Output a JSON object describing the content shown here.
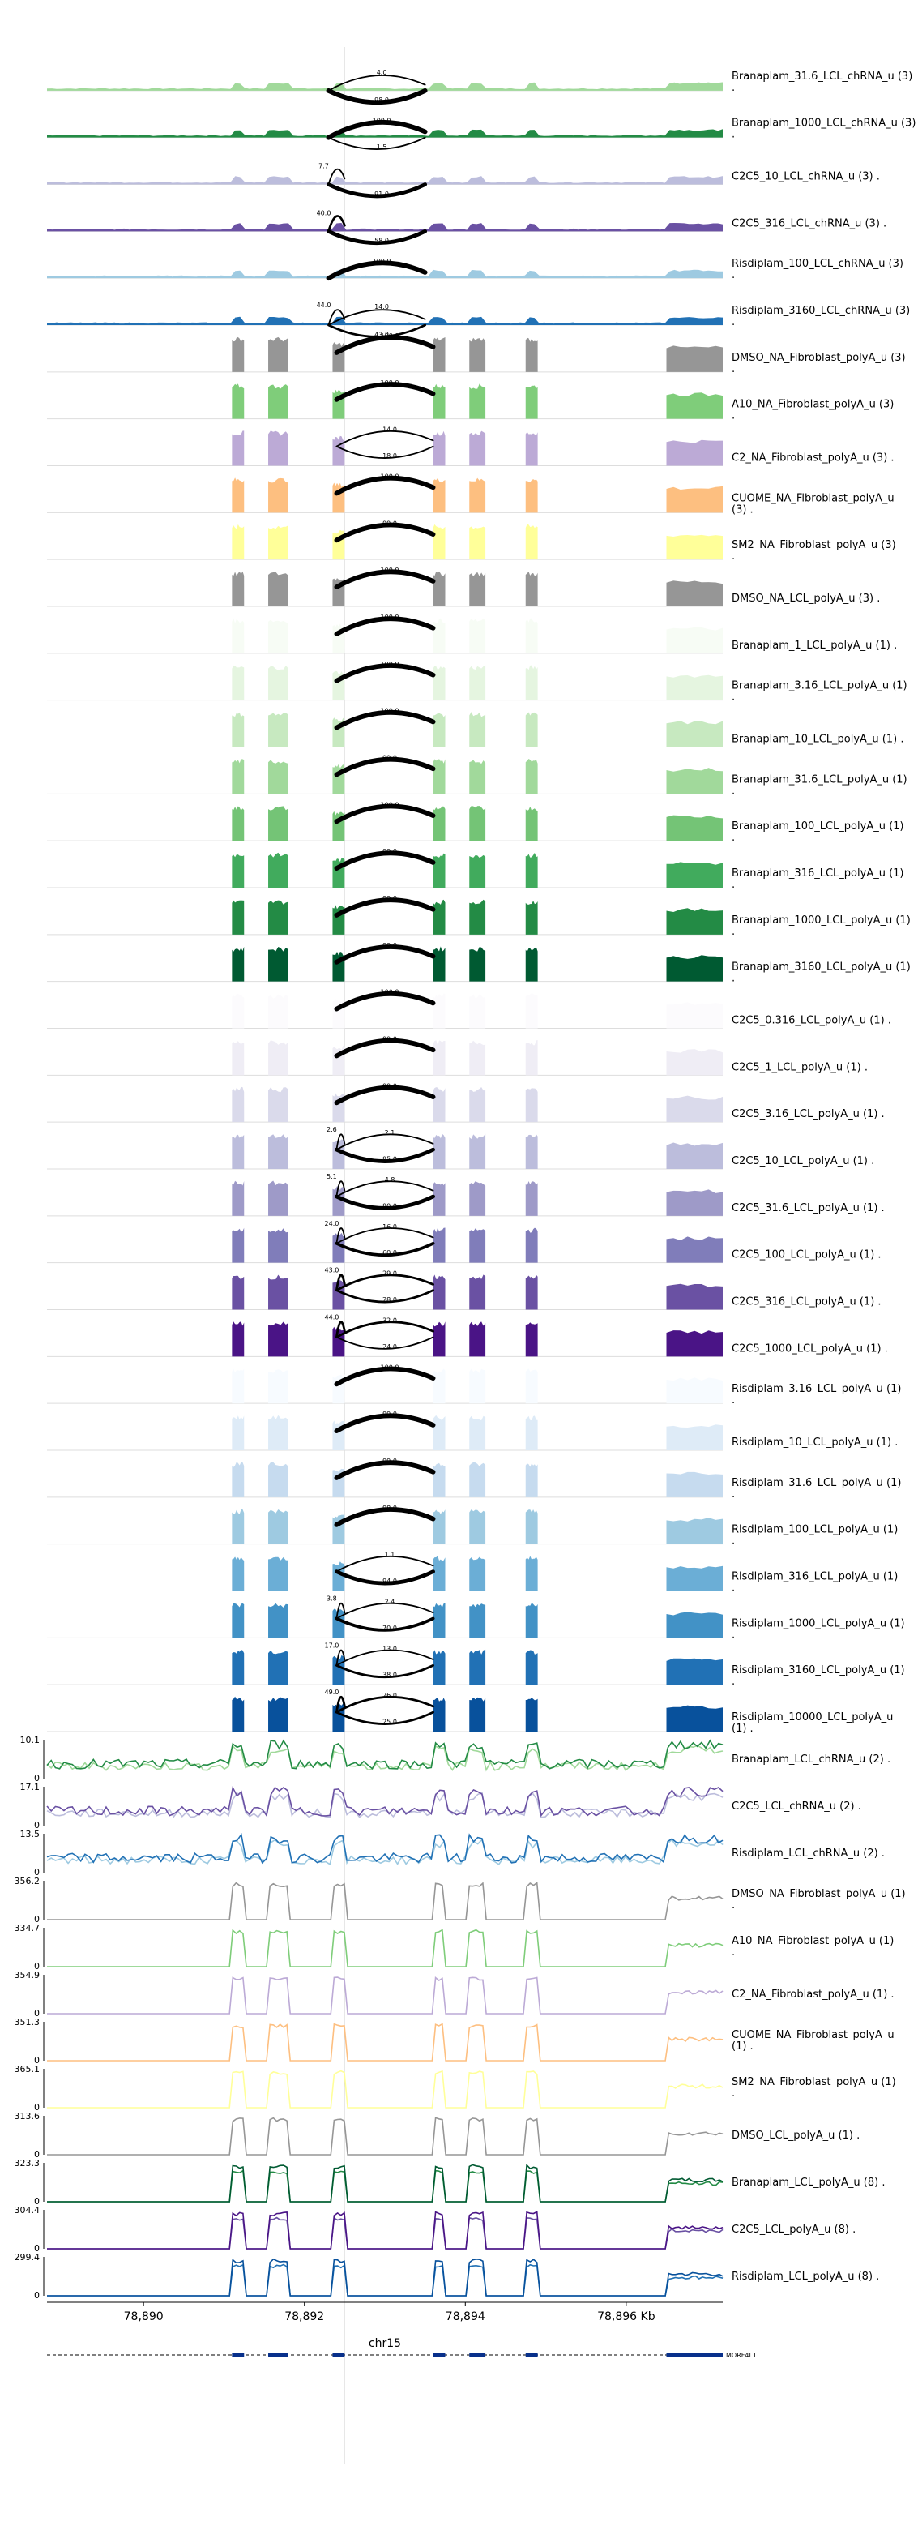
{
  "chart_data": {
    "type": "genome-browser",
    "region": "chr15",
    "xlim": [
      78888.8,
      78897.2
    ],
    "x_ticks": [
      78890,
      78892,
      78894,
      78896
    ],
    "x_tick_labels": [
      "78,890",
      "78,892",
      "78,894",
      "78,896 Kb"
    ],
    "chrom_label": "chr15",
    "gene_label": "MORF4L1",
    "exons": [
      [
        78891.1,
        78891.25
      ],
      [
        78891.55,
        78891.8
      ],
      [
        78892.35,
        78892.5
      ],
      [
        78893.6,
        78893.75
      ],
      [
        78894.05,
        78894.25
      ],
      [
        78894.75,
        78894.9
      ],
      [
        78896.5,
        78897.2
      ]
    ],
    "sashimi_tracks": [
      {
        "label": "Branaplam_31.6_LCL_chRNA_u (3) .",
        "color": "#a1d99b",
        "kind": "chrna",
        "junctions": [
          {
            "from": 78892.3,
            "to": 78893.5,
            "value": "98.0",
            "weight": 5,
            "dir": "down"
          },
          {
            "from": 78892.3,
            "to": 78893.5,
            "value": "4.0",
            "weight": 1,
            "dir": "up"
          }
        ]
      },
      {
        "label": "Branaplam_1000_LCL_chRNA_u (3) .",
        "color": "#238b45",
        "kind": "chrna",
        "junctions": [
          {
            "from": 78892.3,
            "to": 78893.5,
            "value": "100.0",
            "weight": 5,
            "dir": "up"
          },
          {
            "from": 78892.3,
            "to": 78893.5,
            "value": "1.5",
            "weight": 1,
            "dir": "down"
          }
        ]
      },
      {
        "label": "C2C5_10_LCL_chRNA_u (3) .",
        "color": "#bcbddc",
        "kind": "chrna",
        "junctions": [
          {
            "from": 78892.3,
            "to": 78893.5,
            "value": "91.0",
            "weight": 4,
            "dir": "down"
          },
          {
            "from": 78892.3,
            "to": 78892.5,
            "value": "7.7",
            "weight": 1,
            "dir": "up"
          }
        ]
      },
      {
        "label": "C2C5_316_LCL_chRNA_u (3) .",
        "color": "#6a51a3",
        "kind": "chrna",
        "junctions": [
          {
            "from": 78892.3,
            "to": 78893.5,
            "value": "58.0",
            "weight": 4,
            "dir": "down"
          },
          {
            "from": 78892.3,
            "to": 78892.5,
            "value": "40.0",
            "weight": 2,
            "dir": "up"
          }
        ]
      },
      {
        "label": "Risdiplam_100_LCL_chRNA_u (3) .",
        "color": "#9ecae1",
        "kind": "chrna",
        "junctions": [
          {
            "from": 78892.3,
            "to": 78893.5,
            "value": "100.0",
            "weight": 5,
            "dir": "up"
          }
        ]
      },
      {
        "label": "Risdiplam_3160_LCL_chRNA_u (3) .",
        "color": "#2171b5",
        "kind": "chrna",
        "junctions": [
          {
            "from": 78892.3,
            "to": 78893.5,
            "value": "43.0",
            "weight": 2,
            "dir": "down"
          },
          {
            "from": 78892.3,
            "to": 78893.5,
            "value": "14.0",
            "weight": 1,
            "dir": "up"
          },
          {
            "from": 78892.3,
            "to": 78892.5,
            "value": "44.0",
            "weight": 1,
            "dir": "up"
          }
        ]
      },
      {
        "label": "DMSO_NA_Fibroblast_polyA_u (3) .",
        "color": "#969696",
        "kind": "polya",
        "junctions": [
          {
            "from": 78892.4,
            "to": 78893.6,
            "value": "100.0",
            "weight": 5,
            "dir": "up"
          }
        ]
      },
      {
        "label": "A10_NA_Fibroblast_polyA_u (3) .",
        "color": "#7fcd7a",
        "kind": "polya",
        "junctions": [
          {
            "from": 78892.4,
            "to": 78893.6,
            "value": "100.0",
            "weight": 5,
            "dir": "up"
          }
        ]
      },
      {
        "label": "C2_NA_Fibroblast_polyA_u (3) .",
        "color": "#bcaad6",
        "kind": "polya",
        "junctions": [
          {
            "from": 78892.4,
            "to": 78893.6,
            "value": "14.0",
            "weight": 1,
            "dir": "up"
          },
          {
            "from": 78892.4,
            "to": 78893.6,
            "value": "18.0",
            "weight": 1,
            "dir": "down"
          }
        ]
      },
      {
        "label": "CUOME_NA_Fibroblast_polyA_u (3) .",
        "color": "#fdbf80",
        "kind": "polya",
        "junctions": [
          {
            "from": 78892.4,
            "to": 78893.6,
            "value": "100.0",
            "weight": 5,
            "dir": "up"
          }
        ]
      },
      {
        "label": "SM2_NA_Fibroblast_polyA_u (3) .",
        "color": "#ffff99",
        "kind": "polya",
        "junctions": [
          {
            "from": 78892.4,
            "to": 78893.6,
            "value": "99.0",
            "weight": 5,
            "dir": "up"
          }
        ]
      },
      {
        "label": "DMSO_NA_LCL_polyA_u (3) .",
        "color": "#969696",
        "kind": "polya",
        "junctions": [
          {
            "from": 78892.4,
            "to": 78893.6,
            "value": "100.0",
            "weight": 5,
            "dir": "up"
          }
        ]
      },
      {
        "label": "Branaplam_1_LCL_polyA_u (1) .",
        "color": "#f7fcf5",
        "kind": "polya",
        "junctions": [
          {
            "from": 78892.4,
            "to": 78893.6,
            "value": "100.0",
            "weight": 5,
            "dir": "up"
          }
        ]
      },
      {
        "label": "Branaplam_3.16_LCL_polyA_u (1) .",
        "color": "#e5f5e0",
        "kind": "polya",
        "junctions": [
          {
            "from": 78892.4,
            "to": 78893.6,
            "value": "100.0",
            "weight": 5,
            "dir": "up"
          }
        ]
      },
      {
        "label": "Branaplam_10_LCL_polyA_u (1) .",
        "color": "#c7e9c0",
        "kind": "polya",
        "junctions": [
          {
            "from": 78892.4,
            "to": 78893.6,
            "value": "100.0",
            "weight": 5,
            "dir": "up"
          }
        ]
      },
      {
        "label": "Branaplam_31.6_LCL_polyA_u (1) .",
        "color": "#a1d99b",
        "kind": "polya",
        "junctions": [
          {
            "from": 78892.4,
            "to": 78893.6,
            "value": "99.0",
            "weight": 5,
            "dir": "up"
          }
        ]
      },
      {
        "label": "Branaplam_100_LCL_polyA_u (1) .",
        "color": "#74c476",
        "kind": "polya",
        "junctions": [
          {
            "from": 78892.4,
            "to": 78893.6,
            "value": "100.0",
            "weight": 5,
            "dir": "up"
          }
        ]
      },
      {
        "label": "Branaplam_316_LCL_polyA_u (1) .",
        "color": "#41ab5d",
        "kind": "polya",
        "junctions": [
          {
            "from": 78892.4,
            "to": 78893.6,
            "value": "99.0",
            "weight": 5,
            "dir": "up"
          }
        ]
      },
      {
        "label": "Branaplam_1000_LCL_polyA_u (1) .",
        "color": "#238b45",
        "kind": "polya",
        "junctions": [
          {
            "from": 78892.4,
            "to": 78893.6,
            "value": "99.0",
            "weight": 5,
            "dir": "up"
          }
        ]
      },
      {
        "label": "Branaplam_3160_LCL_polyA_u (1) .",
        "color": "#005a32",
        "kind": "polya",
        "junctions": [
          {
            "from": 78892.4,
            "to": 78893.6,
            "value": "99.0",
            "weight": 5,
            "dir": "up"
          }
        ]
      },
      {
        "label": "C2C5_0.316_LCL_polyA_u (1) .",
        "color": "#fcfbfd",
        "kind": "polya",
        "junctions": [
          {
            "from": 78892.4,
            "to": 78893.6,
            "value": "100.0",
            "weight": 5,
            "dir": "up"
          }
        ]
      },
      {
        "label": "C2C5_1_LCL_polyA_u (1) .",
        "color": "#efedf5",
        "kind": "polya",
        "junctions": [
          {
            "from": 78892.4,
            "to": 78893.6,
            "value": "99.0",
            "weight": 5,
            "dir": "up"
          }
        ]
      },
      {
        "label": "C2C5_3.16_LCL_polyA_u (1) .",
        "color": "#dadaeb",
        "kind": "polya",
        "junctions": [
          {
            "from": 78892.4,
            "to": 78893.6,
            "value": "99.0",
            "weight": 5,
            "dir": "up"
          }
        ]
      },
      {
        "label": "C2C5_10_LCL_polyA_u (1) .",
        "color": "#bcbddc",
        "kind": "polya",
        "junctions": [
          {
            "from": 78892.4,
            "to": 78893.6,
            "value": "2.1",
            "weight": 1,
            "dir": "up"
          },
          {
            "from": 78892.4,
            "to": 78893.6,
            "value": "95.0",
            "weight": 4,
            "dir": "down"
          },
          {
            "from": 78892.4,
            "to": 78892.5,
            "value": "2.6",
            "weight": 1,
            "dir": "up"
          }
        ]
      },
      {
        "label": "C2C5_31.6_LCL_polyA_u (1) .",
        "color": "#9e9ac8",
        "kind": "polya",
        "junctions": [
          {
            "from": 78892.4,
            "to": 78893.6,
            "value": "4.8",
            "weight": 1,
            "dir": "up"
          },
          {
            "from": 78892.4,
            "to": 78893.6,
            "value": "90.0",
            "weight": 4,
            "dir": "down"
          },
          {
            "from": 78892.4,
            "to": 78892.5,
            "value": "5.1",
            "weight": 1,
            "dir": "up"
          }
        ]
      },
      {
        "label": "C2C5_100_LCL_polyA_u (1) .",
        "color": "#807dba",
        "kind": "polya",
        "junctions": [
          {
            "from": 78892.4,
            "to": 78893.6,
            "value": "16.0",
            "weight": 1,
            "dir": "up"
          },
          {
            "from": 78892.4,
            "to": 78893.6,
            "value": "60.0",
            "weight": 3,
            "dir": "down"
          },
          {
            "from": 78892.4,
            "to": 78892.5,
            "value": "24.0",
            "weight": 1,
            "dir": "up"
          }
        ]
      },
      {
        "label": "C2C5_316_LCL_polyA_u (1) .",
        "color": "#6a51a3",
        "kind": "polya",
        "junctions": [
          {
            "from": 78892.4,
            "to": 78893.6,
            "value": "29.0",
            "weight": 2,
            "dir": "up"
          },
          {
            "from": 78892.4,
            "to": 78893.6,
            "value": "28.0",
            "weight": 2,
            "dir": "down"
          },
          {
            "from": 78892.4,
            "to": 78892.5,
            "value": "43.0",
            "weight": 2,
            "dir": "up"
          }
        ]
      },
      {
        "label": "C2C5_1000_LCL_polyA_u (1) .",
        "color": "#4a1486",
        "kind": "polya",
        "junctions": [
          {
            "from": 78892.4,
            "to": 78893.6,
            "value": "32.0",
            "weight": 2,
            "dir": "up"
          },
          {
            "from": 78892.4,
            "to": 78893.6,
            "value": "24.0",
            "weight": 1,
            "dir": "down"
          },
          {
            "from": 78892.4,
            "to": 78892.5,
            "value": "44.0",
            "weight": 2,
            "dir": "up"
          }
        ]
      },
      {
        "label": "Risdiplam_3.16_LCL_polyA_u (1) .",
        "color": "#f7fbff",
        "kind": "polya",
        "junctions": [
          {
            "from": 78892.4,
            "to": 78893.6,
            "value": "100.0",
            "weight": 5,
            "dir": "up"
          }
        ]
      },
      {
        "label": "Risdiplam_10_LCL_polyA_u (1) .",
        "color": "#deebf7",
        "kind": "polya",
        "junctions": [
          {
            "from": 78892.4,
            "to": 78893.6,
            "value": "99.0",
            "weight": 5,
            "dir": "up"
          }
        ]
      },
      {
        "label": "Risdiplam_31.6_LCL_polyA_u (1) .",
        "color": "#c6dbef",
        "kind": "polya",
        "junctions": [
          {
            "from": 78892.4,
            "to": 78893.6,
            "value": "99.0",
            "weight": 5,
            "dir": "up"
          }
        ]
      },
      {
        "label": "Risdiplam_100_LCL_polyA_u (1) .",
        "color": "#9ecae1",
        "kind": "polya",
        "junctions": [
          {
            "from": 78892.4,
            "to": 78893.6,
            "value": "98.0",
            "weight": 5,
            "dir": "up"
          }
        ]
      },
      {
        "label": "Risdiplam_316_LCL_polyA_u (1) .",
        "color": "#6baed6",
        "kind": "polya",
        "junctions": [
          {
            "from": 78892.4,
            "to": 78893.6,
            "value": "1.1",
            "weight": 1,
            "dir": "up"
          },
          {
            "from": 78892.4,
            "to": 78893.6,
            "value": "94.0",
            "weight": 4,
            "dir": "down"
          }
        ]
      },
      {
        "label": "Risdiplam_1000_LCL_polyA_u (1) .",
        "color": "#4292c6",
        "kind": "polya",
        "junctions": [
          {
            "from": 78892.4,
            "to": 78893.6,
            "value": "2.4",
            "weight": 1,
            "dir": "up"
          },
          {
            "from": 78892.4,
            "to": 78893.6,
            "value": "70.0",
            "weight": 3,
            "dir": "down"
          },
          {
            "from": 78892.4,
            "to": 78892.5,
            "value": "3.8",
            "weight": 1,
            "dir": "up"
          }
        ]
      },
      {
        "label": "Risdiplam_3160_LCL_polyA_u (1) .",
        "color": "#2171b5",
        "kind": "polya",
        "junctions": [
          {
            "from": 78892.4,
            "to": 78893.6,
            "value": "13.0",
            "weight": 1,
            "dir": "up"
          },
          {
            "from": 78892.4,
            "to": 78893.6,
            "value": "38.0",
            "weight": 2,
            "dir": "down"
          },
          {
            "from": 78892.4,
            "to": 78892.5,
            "value": "17.0",
            "weight": 1,
            "dir": "up"
          }
        ]
      },
      {
        "label": "Risdiplam_10000_LCL_polyA_u (1) .",
        "color": "#08519c",
        "kind": "polya",
        "junctions": [
          {
            "from": 78892.4,
            "to": 78893.6,
            "value": "26.0",
            "weight": 2,
            "dir": "up"
          },
          {
            "from": 78892.4,
            "to": 78893.6,
            "value": "25.0",
            "weight": 2,
            "dir": "down"
          },
          {
            "from": 78892.4,
            "to": 78892.5,
            "value": "49.0",
            "weight": 2,
            "dir": "up"
          }
        ]
      }
    ],
    "coverage_tracks": [
      {
        "label": "Branaplam_LCL_chRNA_u (2) .",
        "ymax": "10.1",
        "ymin": "0",
        "kind": "chrna",
        "colors": [
          "#a1d99b",
          "#238b45"
        ]
      },
      {
        "label": "C2C5_LCL_chRNA_u (2) .",
        "ymax": "17.1",
        "ymin": "0",
        "kind": "chrna",
        "colors": [
          "#bcbddc",
          "#6a51a3"
        ]
      },
      {
        "label": "Risdiplam_LCL_chRNA_u (2) .",
        "ymax": "13.5",
        "ymin": "0",
        "kind": "chrna",
        "colors": [
          "#9ecae1",
          "#2171b5"
        ]
      },
      {
        "label": "DMSO_NA_Fibroblast_polyA_u (1) .",
        "ymax": "356.2",
        "ymin": "0",
        "kind": "polya",
        "colors": [
          "#969696"
        ]
      },
      {
        "label": "A10_NA_Fibroblast_polyA_u (1) .",
        "ymax": "334.7",
        "ymin": "0",
        "kind": "polya",
        "colors": [
          "#7fcd7a"
        ]
      },
      {
        "label": "C2_NA_Fibroblast_polyA_u (1) .",
        "ymax": "354.9",
        "ymin": "0",
        "kind": "polya",
        "colors": [
          "#bcaad6"
        ]
      },
      {
        "label": "CUOME_NA_Fibroblast_polyA_u (1) .",
        "ymax": "351.3",
        "ymin": "0",
        "kind": "polya",
        "colors": [
          "#fdbf80"
        ]
      },
      {
        "label": "SM2_NA_Fibroblast_polyA_u (1) .",
        "ymax": "365.1",
        "ymin": "0",
        "kind": "polya",
        "colors": [
          "#ffff99"
        ]
      },
      {
        "label": "DMSO_LCL_polyA_u (1) .",
        "ymax": "313.6",
        "ymin": "0",
        "kind": "polya",
        "colors": [
          "#969696"
        ]
      },
      {
        "label": "Branaplam_LCL_polyA_u (8) .",
        "ymax": "323.3",
        "ymin": "0",
        "kind": "polya",
        "colors": [
          "#238b45",
          "#005a32"
        ]
      },
      {
        "label": "C2C5_LCL_polyA_u (8) .",
        "ymax": "304.4",
        "ymin": "0",
        "kind": "polya",
        "colors": [
          "#6a51a3",
          "#4a1486"
        ]
      },
      {
        "label": "Risdiplam_LCL_polyA_u (8) .",
        "ymax": "299.4",
        "ymin": "0",
        "kind": "polya",
        "colors": [
          "#2171b5",
          "#08519c"
        ]
      }
    ]
  }
}
